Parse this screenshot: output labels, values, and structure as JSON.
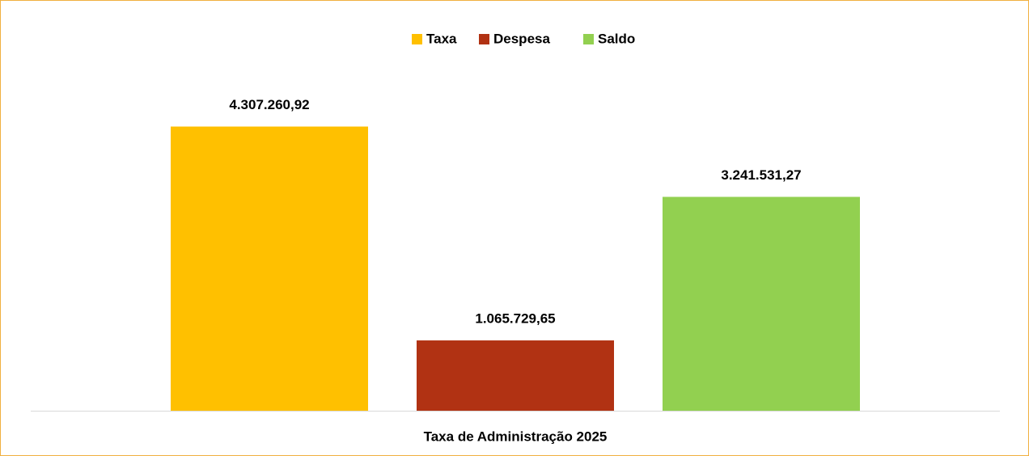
{
  "chart_data": {
    "type": "bar",
    "categories": [
      "Taxa de Administração 2025"
    ],
    "series": [
      {
        "name": "Taxa",
        "color": "#ffc000",
        "values": [
          4307260.92
        ],
        "value_labels": [
          "4.307.260,92"
        ]
      },
      {
        "name": "Despesa",
        "color": "#b13213",
        "values": [
          1065729.65
        ],
        "value_labels": [
          "1.065.729,65"
        ]
      },
      {
        "name": "Saldo",
        "color": "#92d050",
        "values": [
          3241531.27
        ],
        "value_labels": [
          "3.241.531,27"
        ]
      }
    ],
    "ylim": [
      0,
      5000000
    ],
    "legend": "top"
  }
}
